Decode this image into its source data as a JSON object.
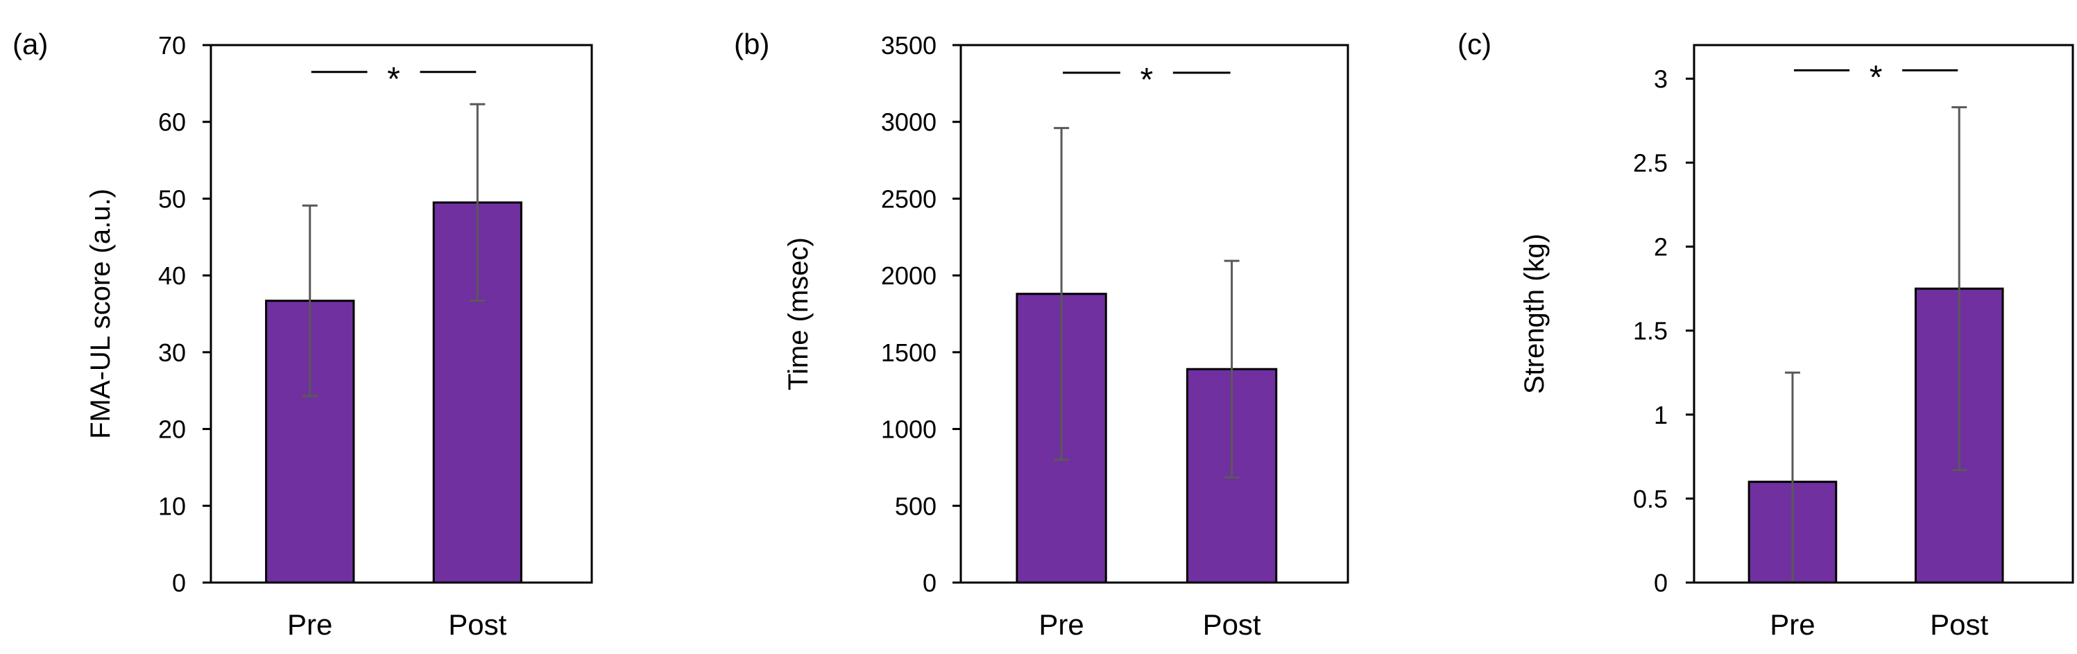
{
  "chart_data": [
    {
      "type": "bar",
      "panel_label": "(a)",
      "title": "",
      "xlabel": "",
      "ylabel": "FMA-UL score (a.u.)",
      "categories": [
        "Pre",
        "Post"
      ],
      "values": [
        36.7,
        49.5
      ],
      "errors": [
        12.4,
        12.8
      ],
      "ylim": [
        0,
        70
      ],
      "yticks": [
        0,
        10,
        20,
        30,
        40,
        50,
        60,
        70
      ],
      "ytick_labels": [
        "0",
        "10",
        "20",
        "30",
        "40",
        "50",
        "60",
        "70"
      ],
      "significance": {
        "label": "*",
        "y": 66.5
      },
      "grid": false
    },
    {
      "type": "bar",
      "panel_label": "(b)",
      "title": "",
      "xlabel": "",
      "ylabel": "Time (msec)",
      "categories": [
        "Pre",
        "Post"
      ],
      "values": [
        1880,
        1390
      ],
      "errors": [
        1080,
        705
      ],
      "ylim": [
        0,
        3500
      ],
      "yticks": [
        0,
        500,
        1000,
        1500,
        2000,
        2500,
        3000,
        3500
      ],
      "ytick_labels": [
        "0",
        "500",
        "1000",
        "1500",
        "2000",
        "2500",
        "3000",
        "3500"
      ],
      "significance": {
        "label": "*",
        "y": 3320
      },
      "grid": false
    },
    {
      "type": "bar",
      "panel_label": "(c)",
      "title": "",
      "xlabel": "",
      "ylabel": "Strength (kg)",
      "categories": [
        "Pre",
        "Post"
      ],
      "values": [
        0.6,
        1.75
      ],
      "errors": [
        0.65,
        1.08
      ],
      "ylim": [
        0,
        3.2
      ],
      "yticks": [
        0,
        0.5,
        1,
        1.5,
        2,
        2.5,
        3
      ],
      "ytick_labels": [
        "0",
        "0.5",
        "1",
        "1.5",
        "2",
        "2.5",
        "3"
      ],
      "significance": {
        "label": "*",
        "y": 3.05
      },
      "grid": false
    }
  ],
  "colors": {
    "bar_fill": "#7030a0",
    "bar_stroke": "#000000",
    "error_bar": "#595959",
    "axis": "#000000"
  }
}
